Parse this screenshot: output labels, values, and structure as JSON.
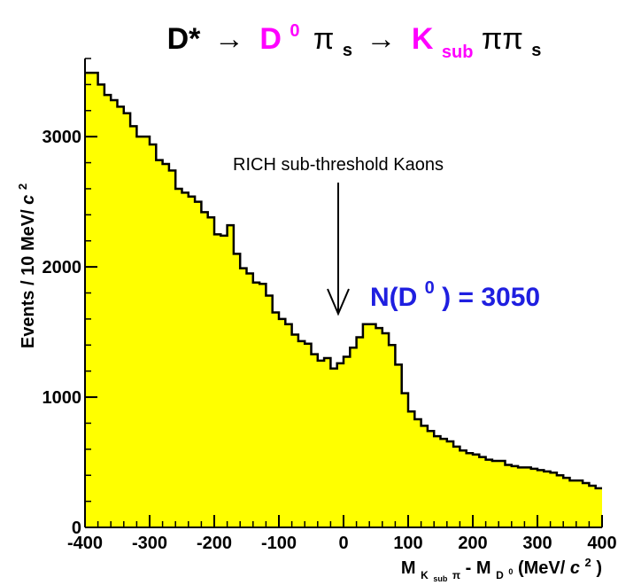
{
  "colors": {
    "fill": "#ffff00",
    "stroke": "#000000",
    "title_highlight": "#ff00ff",
    "annotation_blue": "#1f1fe0"
  },
  "title": {
    "p1": "D*",
    "arrow1": "→",
    "p2": "D",
    "p2_sup": "0",
    "p3": "π",
    "p3_sub": "s",
    "arrow2": "→",
    "p4": "K",
    "p4_sub": "sub",
    "p5": "ππ",
    "p5_sub": "s"
  },
  "annotations": {
    "rich": "RICH sub-threshold Kaons",
    "nd0_main": "N(D",
    "nd0_sup": "0",
    "nd0_tail": ") = 3050"
  },
  "axis": {
    "y_main": "Events / 10 MeV/ ",
    "y_unit": "c",
    "y_unit_sup": "2",
    "x_m": "M",
    "x_sub1": "K",
    "x_sub1b": "sub",
    "x_sub1c": "π",
    "x_minus": " - M",
    "x_sub2": "D",
    "x_sub2_sup": "0",
    "x_units": " (MeV/",
    "x_c": "c",
    "x_c_sup": "2",
    "x_close": ")"
  },
  "chart_data": {
    "type": "bar",
    "title": "D* → D0 πs → Ksub ππs",
    "xlabel": "M(Ksub π) - M(D0) (MeV/c²)",
    "ylabel": "Events / 10 MeV/c²",
    "xlim": [
      -400,
      400
    ],
    "ylim": [
      0,
      3600
    ],
    "x_ticks": [
      -400,
      -300,
      -200,
      -100,
      0,
      100,
      200,
      300,
      400
    ],
    "y_ticks": [
      0,
      1000,
      2000,
      3000
    ],
    "bin_width": 10,
    "x_start": -400,
    "values": [
      3490,
      3490,
      3400,
      3320,
      3280,
      3230,
      3180,
      3080,
      3000,
      3000,
      2940,
      2820,
      2790,
      2740,
      2600,
      2570,
      2540,
      2500,
      2420,
      2380,
      2250,
      2240,
      2320,
      2100,
      1990,
      1950,
      1880,
      1870,
      1780,
      1650,
      1600,
      1560,
      1480,
      1430,
      1410,
      1330,
      1280,
      1300,
      1220,
      1260,
      1310,
      1380,
      1460,
      1560,
      1560,
      1530,
      1490,
      1400,
      1250,
      1030,
      890,
      830,
      780,
      740,
      700,
      680,
      660,
      620,
      590,
      570,
      560,
      540,
      520,
      510,
      510,
      480,
      470,
      460,
      460,
      450,
      440,
      430,
      420,
      400,
      380,
      360,
      360,
      340,
      320,
      300
    ]
  }
}
